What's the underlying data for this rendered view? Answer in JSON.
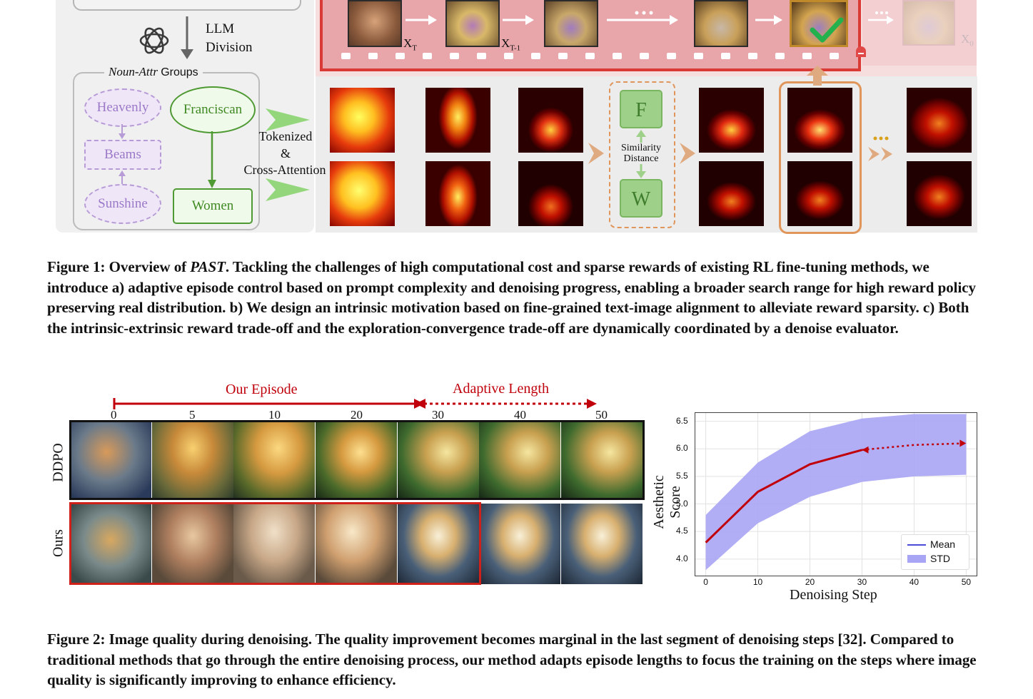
{
  "figure1": {
    "llm_division": [
      "LLM",
      "Division"
    ],
    "groups_title_italic": "Noun-Attr",
    "groups_title_rest": "Groups",
    "nodes": {
      "heavenly": "Heavenly",
      "beams": "Beams",
      "sunshine": "Sunshine",
      "franciscan": "Franciscan",
      "women": "Women"
    },
    "tokenized": [
      "Tokenized",
      "&",
      "Cross-Attention"
    ],
    "xt": "X",
    "xt_sub": "T",
    "xt1": "X",
    "xt1_sub": "T-1",
    "x0": "X",
    "x0_sub": "0",
    "f_letter": "F",
    "w_letter": "W",
    "similarity": [
      "Similarity",
      "Distance"
    ],
    "caption_label": "Figure 1: Overview of ",
    "caption_name": "PAST",
    "caption_text": ". Tackling the challenges of high computational cost and sparse rewards of existing RL fine-tuning methods, we introduce a) adaptive episode control based on prompt complexity and denoising progress, enabling a broader search range for high reward policy preserving real distribution. b) We design an intrinsic motivation based on fine-grained text-image alignment to alleviate reward sparsity. c) Both the intrinsic-extrinsic reward trade-off and the exploration-convergence trade-off are dynamically coordinated by a denoise evaluator."
  },
  "figure2": {
    "our_episode": "Our Episode",
    "adaptive_length": "Adaptive Length",
    "steps": [
      "0",
      "5",
      "10",
      "20",
      "30",
      "40",
      "50"
    ],
    "row_ddpo": "DDPO",
    "row_ours": "Ours",
    "caption": "Figure 2: Image quality during denoising. The quality improvement becomes marginal in the last segment of denoising steps [32]. Compared to traditional methods that go through the entire denoising process, our method adapts episode lengths to focus the training on the steps where image quality is significantly improving to enhance efficiency."
  },
  "chart_data": {
    "type": "line",
    "title": "",
    "xlabel": "Denoising Step",
    "ylabel": "Aesthetic Score",
    "xlim": [
      -2,
      52
    ],
    "ylim": [
      3.7,
      6.65
    ],
    "x_ticks": [
      "0",
      "10",
      "20",
      "30",
      "40",
      "50"
    ],
    "y_ticks": [
      "4.0",
      "4.5",
      "5.0",
      "5.5",
      "6.0",
      "6.5"
    ],
    "grid": true,
    "legend_position": "bottom-right",
    "legend": [
      "Mean",
      "STD"
    ],
    "x": [
      0,
      10,
      20,
      30,
      40,
      50
    ],
    "mean": [
      4.3,
      5.22,
      5.72,
      5.98,
      6.07,
      6.1
    ],
    "std_upper": [
      4.8,
      5.75,
      6.32,
      6.55,
      6.63,
      6.63
    ],
    "std_lower": [
      3.8,
      4.65,
      5.13,
      5.4,
      5.5,
      5.53
    ],
    "solid_until": 30,
    "colors": {
      "mean": "#c0000b",
      "std_fill": "#a9a5f5",
      "mean_legend": "#4b4bd6"
    }
  }
}
